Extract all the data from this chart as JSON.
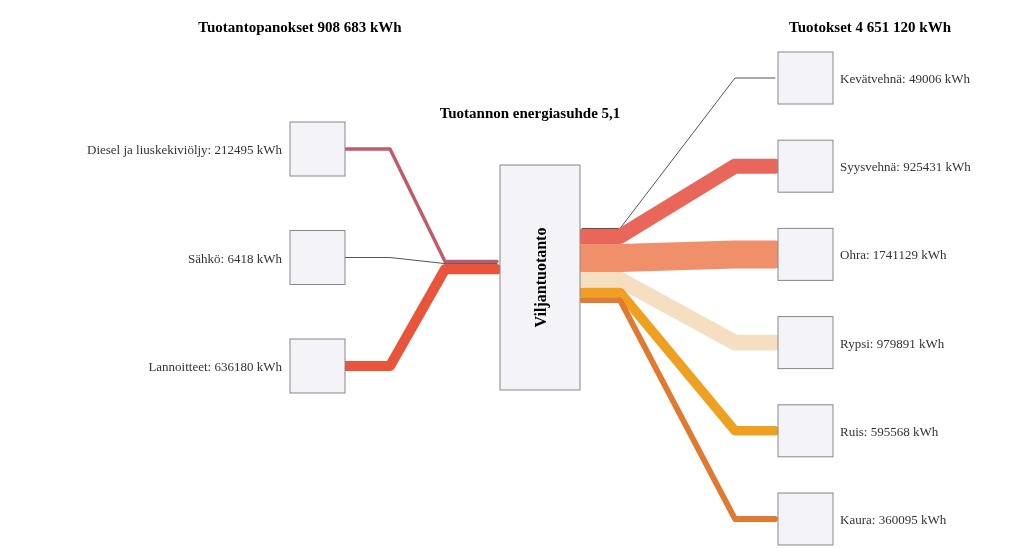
{
  "chart_data": {
    "type": "other",
    "title": "Tuotannon energiasuhde 5,1",
    "annotations": [
      "Viljantuotanto"
    ],
    "categories": [
      "Diesel ja liuskekiviöljy",
      "Sähkö",
      "Lannoitteet",
      "Kevätvehnä",
      "Syysvehnä",
      "Ohra",
      "Rypsi",
      "Ruis",
      "Kaura"
    ],
    "colors": [
      "#c25a6e",
      "#555555",
      "#e8553a",
      "#555555",
      "#e8675a",
      "#f0906a",
      "#f5dfc0",
      "#f0a020",
      "#e07a30"
    ],
    "series": [
      {
        "name": "Tuotantopanokset 908 683 kWh",
        "values": [
          212495,
          6418,
          636180,
          null,
          null,
          null,
          null,
          null,
          null
        ],
        "value_labels": [
          ": 212495 kWh",
          ": 6418 kWh",
          ": 636180 kWh",
          null,
          null,
          null,
          null,
          null,
          null
        ]
      },
      {
        "name": "Tuotokset 4 651 120 kWh",
        "values": [
          null,
          null,
          null,
          49006,
          925431,
          1741129,
          979891,
          595568,
          360095
        ],
        "value_labels": [
          null,
          null,
          null,
          ": 49006 kWh",
          ": 925431 kWh",
          ": 1741129 kWh",
          ": 979891 kWh",
          ": 595568 kWh",
          ": 360095 kWh"
        ]
      }
    ]
  }
}
